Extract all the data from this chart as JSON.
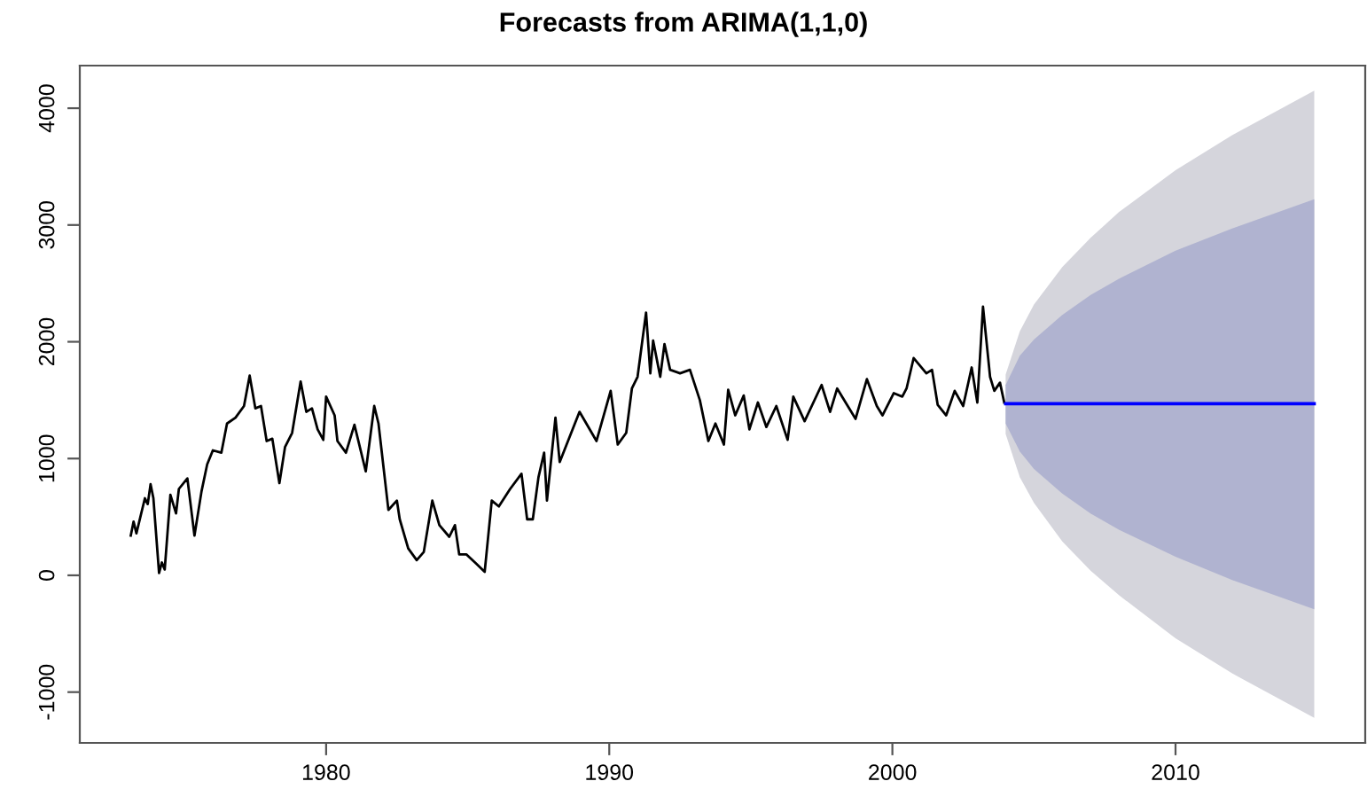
{
  "chart_data": {
    "type": "line",
    "title": "Forecasts from ARIMA(1,1,0)",
    "xlim": [
      1971.3,
      2016.7
    ],
    "ylim": [
      -1435,
      4365
    ],
    "xticks": [
      1980,
      1990,
      2000,
      2010
    ],
    "yticks": [
      {
        "value": -1000,
        "label": "-1000"
      },
      0,
      1000,
      2000,
      3000,
      4000
    ],
    "grid": false,
    "legend": false,
    "marker": "none",
    "line_style": "solid",
    "series": [
      {
        "color": "#000000",
        "x": [
          1973.1,
          1973.2,
          1973.3,
          1973.6,
          1973.7,
          1973.8,
          1973.9,
          1974.1,
          1974.2,
          1974.3,
          1974.5,
          1974.7,
          1974.8,
          1975.1,
          1975.35,
          1975.6,
          1975.8,
          1976.0,
          1976.3,
          1976.5,
          1976.8,
          1977.1,
          1977.3,
          1977.5,
          1977.7,
          1977.9,
          1978.1,
          1978.35,
          1978.55,
          1978.8,
          1979.1,
          1979.3,
          1979.5,
          1979.7,
          1979.9,
          1980.0,
          1980.3,
          1980.4,
          1980.7,
          1981.0,
          1981.4,
          1981.7,
          1981.85,
          1982.2,
          1982.5,
          1982.6,
          1982.9,
          1983.2,
          1983.45,
          1983.75,
          1984.0,
          1984.35,
          1984.55,
          1984.7,
          1984.95,
          1985.3,
          1985.6,
          1985.85,
          1986.1,
          1986.5,
          1986.9,
          1987.1,
          1987.3,
          1987.5,
          1987.7,
          1987.8,
          1988.1,
          1988.25,
          1988.95,
          1989.55,
          1990.05,
          1990.3,
          1990.6,
          1990.8,
          1991.0,
          1991.3,
          1991.45,
          1991.55,
          1991.8,
          1991.95,
          1992.15,
          1992.5,
          1992.85,
          1993.2,
          1993.5,
          1993.75,
          1994.05,
          1994.2,
          1994.45,
          1994.75,
          1994.95,
          1995.25,
          1995.55,
          1995.9,
          1996.3,
          1996.5,
          1996.9,
          1997.5,
          1997.8,
          1998.05,
          1998.4,
          1998.7,
          1999.1,
          1999.45,
          1999.65,
          2000.05,
          2000.35,
          2000.5,
          2000.75,
          2001.2,
          2001.4,
          2001.6,
          2001.9,
          2002.2,
          2002.5,
          2002.8,
          2003.0,
          2003.2,
          2003.45,
          2003.6,
          2003.8,
          2003.95
        ],
        "values": [
          340,
          460,
          360,
          660,
          610,
          780,
          660,
          20,
          110,
          50,
          690,
          530,
          740,
          830,
          340,
          720,
          950,
          1070,
          1050,
          1300,
          1350,
          1450,
          1710,
          1430,
          1450,
          1150,
          1170,
          790,
          1100,
          1220,
          1660,
          1400,
          1430,
          1250,
          1160,
          1530,
          1370,
          1150,
          1050,
          1290,
          890,
          1450,
          1300,
          560,
          640,
          480,
          230,
          130,
          200,
          640,
          430,
          330,
          430,
          180,
          180,
          100,
          30,
          640,
          590,
          740,
          870,
          480,
          480,
          840,
          1050,
          640,
          1350,
          970,
          1400,
          1150,
          1580,
          1120,
          1220,
          1600,
          1700,
          2250,
          1730,
          2010,
          1700,
          1980,
          1760,
          1730,
          1760,
          1500,
          1150,
          1300,
          1120,
          1590,
          1370,
          1540,
          1250,
          1480,
          1270,
          1450,
          1160,
          1530,
          1320,
          1630,
          1400,
          1600,
          1460,
          1340,
          1680,
          1450,
          1370,
          1560,
          1530,
          1600,
          1860,
          1730,
          1760,
          1460,
          1370,
          1580,
          1450,
          1780,
          1480,
          2300,
          1700,
          1580,
          1650,
          1480
        ]
      },
      {
        "color": "#0000ff",
        "x": [
          2004.0,
          2004.5,
          2005,
          2006,
          2007,
          2008,
          2010,
          2012,
          2014.9
        ],
        "values": [
          1470,
          1470,
          1470,
          1470,
          1470,
          1470,
          1470,
          1470,
          1470
        ]
      },
      {
        "color": "#b0b3d0",
        "x": [
          2004.0,
          2004.5,
          2005,
          2006,
          2007,
          2008,
          2010,
          2012,
          2014.9
        ],
        "values": [
          null,
          null,
          null,
          null,
          null,
          null,
          null,
          null,
          null
        ],
        "lower": [
          1300,
          1060,
          910,
          700,
          530,
          390,
          160,
          -40,
          -290
        ],
        "upper": [
          1630,
          1880,
          2020,
          2230,
          2400,
          2540,
          2780,
          2970,
          3220
        ]
      },
      {
        "color": "#d5d5dc",
        "x": [
          2004.0,
          2004.5,
          2005,
          2006,
          2007,
          2008,
          2010,
          2012,
          2014.9
        ],
        "values": [
          null,
          null,
          null,
          null,
          null,
          null,
          null,
          null,
          null
        ],
        "lower": [
          1210,
          840,
          620,
          290,
          40,
          -170,
          -540,
          -840,
          -1220
        ],
        "upper": [
          1720,
          2090,
          2320,
          2640,
          2890,
          3110,
          3470,
          3770,
          4150
        ]
      }
    ]
  }
}
